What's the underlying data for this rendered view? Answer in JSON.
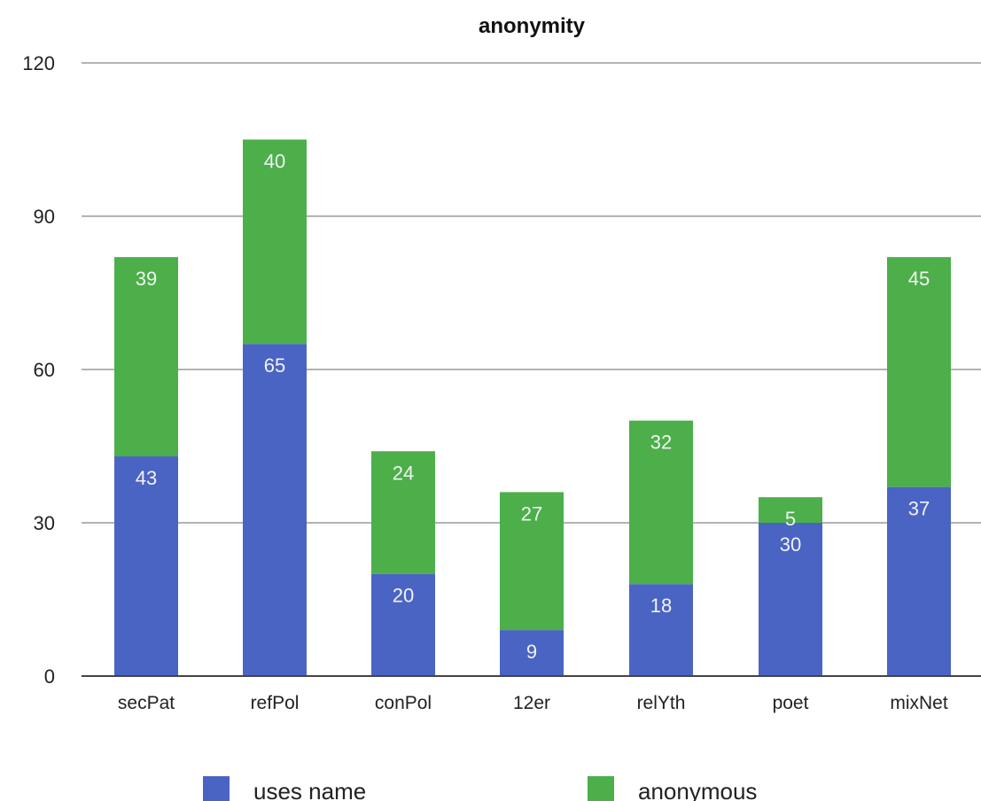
{
  "chart_data": {
    "type": "bar",
    "stacked": true,
    "title": "anonymity",
    "categories": [
      "secPat",
      "refPol",
      "conPol",
      "12er",
      "relYth",
      "poet",
      "mixNet"
    ],
    "series": [
      {
        "name": "uses name",
        "values": [
          43,
          65,
          20,
          9,
          18,
          30,
          37
        ],
        "color": "#4a64c4"
      },
      {
        "name": "anonymous",
        "values": [
          39,
          40,
          24,
          27,
          32,
          5,
          45
        ],
        "color": "#4caf4a"
      }
    ],
    "ylim": [
      0,
      120
    ],
    "yticks": [
      "0",
      "30",
      "60",
      "90",
      "120"
    ],
    "grid": true,
    "legend_position": "bottom",
    "xlabel": "",
    "ylabel": ""
  }
}
